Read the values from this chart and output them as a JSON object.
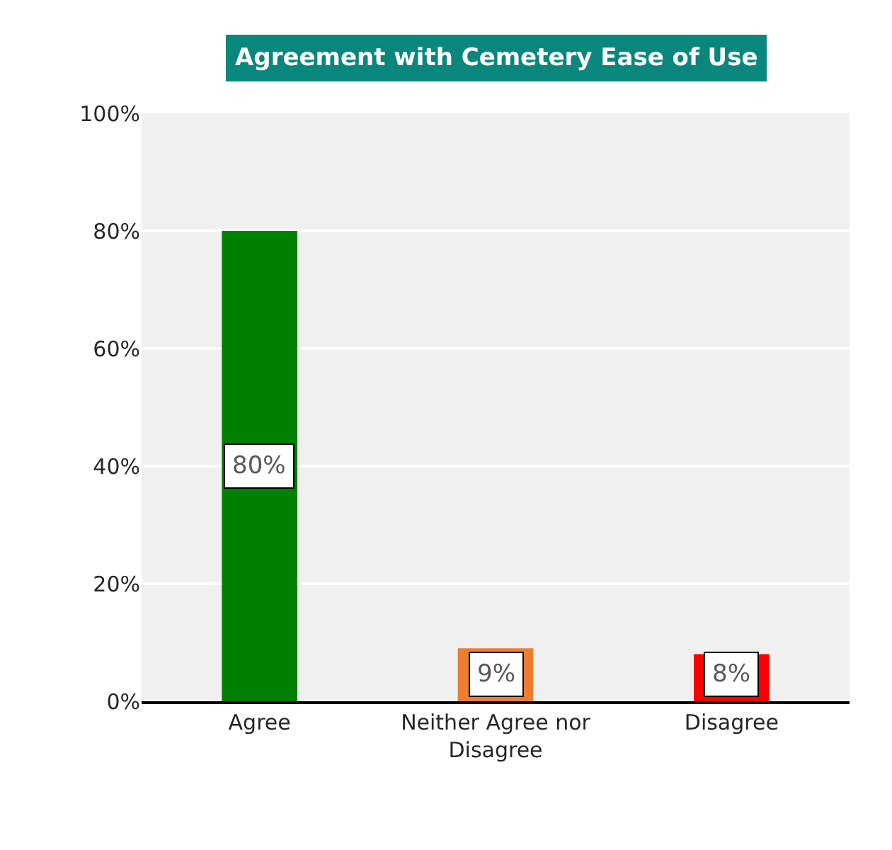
{
  "chart_data": {
    "type": "bar",
    "title": "Agreement with Cemetery Ease of Use",
    "categories": [
      "Agree",
      "Neither Agree nor Disagree",
      "Disagree"
    ],
    "values": [
      80,
      9,
      8
    ],
    "colors": [
      "#008000",
      "#ed7d31",
      "#ff0000"
    ],
    "ylim": [
      0,
      100
    ],
    "yticks": [
      {
        "value": 0,
        "label": "0%"
      },
      {
        "value": 20,
        "label": "20%"
      },
      {
        "value": 40,
        "label": "40%"
      },
      {
        "value": 60,
        "label": "60%"
      },
      {
        "value": 80,
        "label": "80%"
      },
      {
        "value": 100,
        "label": "100%"
      }
    ],
    "value_labels": [
      "80%",
      "9%",
      "8%"
    ],
    "grid": "y",
    "legend": false
  }
}
